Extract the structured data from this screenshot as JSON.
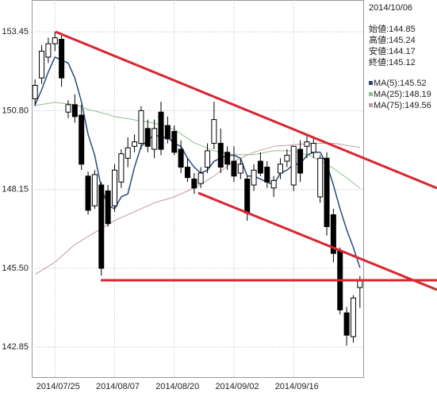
{
  "chart_data": {
    "type": "candlestick",
    "categories": [
      null,
      null,
      null,
      "2014/07/25",
      null,
      null,
      null,
      null,
      null,
      null,
      null,
      null,
      "2014/08/07",
      null,
      null,
      null,
      null,
      null,
      null,
      null,
      null,
      "2014/08/20",
      null,
      null,
      null,
      null,
      null,
      null,
      null,
      null,
      "2014/09/02",
      null,
      null,
      null,
      null,
      null,
      null,
      null,
      null,
      "2014/09/16",
      null,
      null,
      null,
      null,
      null,
      null,
      null,
      null,
      null,
      null
    ],
    "open": [
      151.2,
      151.9,
      152.6,
      153.05,
      153.2,
      150.75,
      151.0,
      150.65,
      148.6,
      147.6,
      148.3,
      148.1,
      147.6,
      148.4,
      149.2,
      149.6,
      149.7,
      150.2,
      149.5,
      150.75,
      150.3,
      150.1,
      149.5,
      148.9,
      148.5,
      148.35,
      148.9,
      149.7,
      149.7,
      149.4,
      149.1,
      148.7,
      148.5,
      148.3,
      149.1,
      148.9,
      148.2,
      148.7,
      149.1,
      148.3,
      149.5,
      149.6,
      149.4,
      147.9,
      149.2,
      147.3,
      146.1,
      144.0,
      143.2,
      144.85
    ],
    "high": [
      151.85,
      153.0,
      153.25,
      153.45,
      153.4,
      151.15,
      151.35,
      151.0,
      148.75,
      148.8,
      148.4,
      148.3,
      149.0,
      149.5,
      149.9,
      150.0,
      150.95,
      150.5,
      150.5,
      151.1,
      150.6,
      150.3,
      149.8,
      149.2,
      148.7,
      148.9,
      149.7,
      151.1,
      150.2,
      149.6,
      149.6,
      149.2,
      148.6,
      149.0,
      149.4,
      149.1,
      148.6,
      149.2,
      149.5,
      149.6,
      149.8,
      149.95,
      149.9,
      149.3,
      149.4,
      147.5,
      146.2,
      144.2,
      144.6,
      145.24
    ],
    "low": [
      150.95,
      151.7,
      152.4,
      152.8,
      151.6,
      150.55,
      150.4,
      148.8,
      147.3,
      147.5,
      145.25,
      146.9,
      147.4,
      148.2,
      148.9,
      149.4,
      149.5,
      149.4,
      149.2,
      149.3,
      149.7,
      149.3,
      148.7,
      148.4,
      148.0,
      148.2,
      148.7,
      149.5,
      148.7,
      148.8,
      148.4,
      148.5,
      147.1,
      148.1,
      148.6,
      148.2,
      147.9,
      148.5,
      148.9,
      148.1,
      148.4,
      149.2,
      149.2,
      147.7,
      146.6,
      145.7,
      143.95,
      142.9,
      143.0,
      144.17
    ],
    "close": [
      151.65,
      152.8,
      153.05,
      153.25,
      151.9,
      151.0,
      150.6,
      149.0,
      147.45,
      148.65,
      145.5,
      147.0,
      148.8,
      149.35,
      149.55,
      149.75,
      150.8,
      149.6,
      150.2,
      149.5,
      149.85,
      149.4,
      148.9,
      148.55,
      148.2,
      148.7,
      149.45,
      150.5,
      148.9,
      149.0,
      148.6,
      149.0,
      147.35,
      148.8,
      148.7,
      148.4,
      148.45,
      149.0,
      149.3,
      149.6,
      148.7,
      149.75,
      149.7,
      149.2,
      146.9,
      146.0,
      144.1,
      143.25,
      144.5,
      145.12
    ],
    "up_color": "#ffffff",
    "down_color": "#000000",
    "series": [
      {
        "name": "MA(5):",
        "last": 145.52,
        "color": "#2b4a7a",
        "values": [
          151.0,
          151.5,
          152.1,
          152.6,
          152.5,
          152.4,
          151.9,
          151.1,
          150.0,
          149.3,
          148.2,
          147.6,
          147.5,
          147.9,
          148.0,
          148.9,
          149.6,
          149.8,
          150.0,
          149.9,
          149.9,
          149.7,
          149.6,
          149.2,
          148.9,
          148.7,
          148.8,
          149.1,
          149.2,
          149.3,
          149.3,
          149.2,
          148.6,
          148.6,
          148.5,
          148.4,
          148.3,
          148.7,
          148.8,
          149.0,
          149.0,
          149.3,
          149.4,
          149.4,
          149.0,
          148.3,
          147.5,
          146.8,
          146.2,
          145.52
        ]
      },
      {
        "name": "MA(25):",
        "last": 148.19,
        "color": "#8fbf8f",
        "values": [
          150.97,
          151.01,
          151.04,
          151.08,
          151.05,
          151.03,
          151.0,
          150.92,
          150.84,
          150.79,
          150.73,
          150.67,
          150.6,
          150.56,
          150.53,
          150.49,
          150.45,
          150.42,
          150.38,
          150.31,
          150.24,
          150.17,
          150.02,
          149.87,
          149.72,
          149.63,
          149.54,
          149.45,
          149.41,
          149.36,
          149.32,
          149.32,
          149.32,
          149.32,
          149.36,
          149.41,
          149.45,
          149.45,
          149.45,
          149.45,
          149.38,
          149.31,
          149.24,
          149.11,
          148.99,
          148.86,
          148.7,
          148.54,
          148.37,
          148.19
        ]
      },
      {
        "name": "MA(75):",
        "last": 149.56,
        "color": "#c39a9c",
        "values": [
          145.3,
          145.43,
          145.57,
          145.7,
          145.9,
          146.1,
          146.3,
          146.43,
          146.57,
          146.7,
          146.83,
          146.97,
          147.1,
          147.2,
          147.3,
          147.4,
          147.5,
          147.6,
          147.7,
          147.77,
          147.83,
          147.9,
          148.0,
          148.1,
          148.2,
          148.33,
          148.47,
          148.6,
          148.77,
          148.93,
          149.1,
          149.2,
          149.3,
          149.4,
          149.47,
          149.53,
          149.6,
          149.62,
          149.63,
          149.65,
          149.67,
          149.68,
          149.7,
          149.7,
          149.7,
          149.7,
          149.67,
          149.63,
          149.6,
          149.56
        ]
      }
    ],
    "ylim": [
      141.84,
      154.52
    ],
    "yticks": [
      153.45,
      {
        "value": 150.8,
        "label": "150.80"
      },
      148.15,
      {
        "value": 145.5,
        "label": "145.50"
      },
      142.85
    ],
    "grid": true,
    "info": {
      "date": "2014/10/06",
      "items": [
        {
          "label": "始値:",
          "value": 144.85
        },
        {
          "label": "高値:",
          "value": 145.24
        },
        {
          "label": "安値:",
          "value": 144.17
        },
        {
          "label": "終値:",
          "value": 145.12
        }
      ]
    }
  }
}
